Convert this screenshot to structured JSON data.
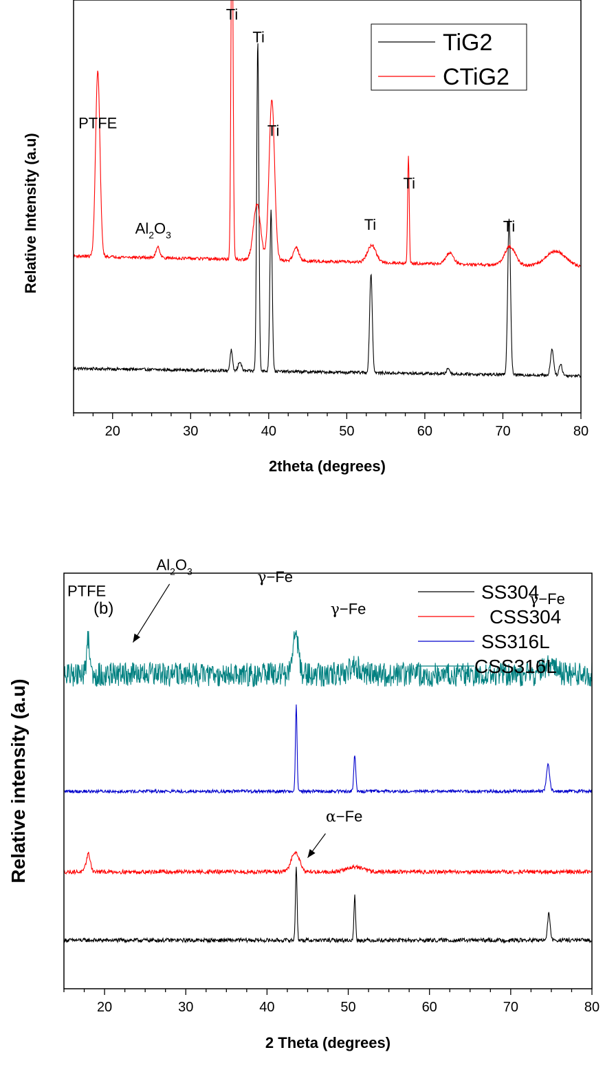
{
  "chart_data": [
    {
      "type": "line",
      "panel_label": "",
      "xlabel": "2theta (degrees)",
      "ylabel": "Relative Intensity (a.u)",
      "xlim": [
        15,
        80
      ],
      "xticks": [
        "20",
        "30",
        "40",
        "50",
        "60",
        "70",
        "80"
      ],
      "yticks_shown": false,
      "grid": false,
      "legend_position": "top-right",
      "series": [
        {
          "name": "TiG2",
          "color": "#000000",
          "baseline": 0.1,
          "slope": -0.0003,
          "noise": 0.004,
          "peaks": [
            {
              "x": 35.2,
              "h": 0.055,
              "w": 0.15
            },
            {
              "x": 36.3,
              "h": 0.025,
              "w": 0.2
            },
            {
              "x": 38.6,
              "h": 0.88,
              "w": 0.14
            },
            {
              "x": 40.3,
              "h": 0.43,
              "w": 0.15
            },
            {
              "x": 53.1,
              "h": 0.265,
              "w": 0.17
            },
            {
              "x": 63.0,
              "h": 0.015,
              "w": 0.2
            },
            {
              "x": 70.8,
              "h": 0.42,
              "w": 0.18
            },
            {
              "x": 76.3,
              "h": 0.07,
              "w": 0.2
            },
            {
              "x": 77.4,
              "h": 0.03,
              "w": 0.2
            }
          ]
        },
        {
          "name": "CTiG2",
          "color": "#ff0000",
          "baseline": 0.4,
          "slope": -0.00045,
          "noise": 0.004,
          "peaks": [
            {
              "x": 18.1,
              "h": 0.495,
              "w": 0.28
            },
            {
              "x": 25.8,
              "h": 0.03,
              "w": 0.25
            },
            {
              "x": 35.3,
              "h": 1.0,
              "w": 0.13
            },
            {
              "x": 38.5,
              "h": 0.15,
              "w": 0.45
            },
            {
              "x": 40.4,
              "h": 0.43,
              "w": 0.35
            },
            {
              "x": 43.5,
              "h": 0.035,
              "w": 0.35
            },
            {
              "x": 53.2,
              "h": 0.045,
              "w": 0.55
            },
            {
              "x": 57.9,
              "h": 0.29,
              "w": 0.1
            },
            {
              "x": 63.2,
              "h": 0.03,
              "w": 0.5
            },
            {
              "x": 70.9,
              "h": 0.05,
              "w": 0.7
            },
            {
              "x": 76.8,
              "h": 0.04,
              "w": 1.3
            }
          ]
        }
      ],
      "annotations": [
        {
          "text": "Ti",
          "x": 35.3,
          "label_y": 1.03
        },
        {
          "text": "Ti",
          "x": 38.7,
          "label_y": 0.97
        },
        {
          "text": "PTFE",
          "x": 18.1,
          "label_y": 0.74
        },
        {
          "text": "Ti",
          "x": 40.6,
          "label_y": 0.72
        },
        {
          "text": "Ti",
          "x": 58.0,
          "label_y": 0.58
        },
        {
          "text": "Ti",
          "x": 53.0,
          "label_y": 0.47
        },
        {
          "text": "Ti",
          "x": 70.8,
          "label_y": 0.465
        }
      ],
      "al2o3_annotation": {
        "base": "Al",
        "sub1": "2",
        "mid": "O",
        "sub2": "3",
        "x": 25.2,
        "label_y": 0.46
      }
    },
    {
      "type": "line",
      "panel_label": "(b)",
      "xlabel": "2 Theta (degrees)",
      "ylabel": "Relative intensity (a.u)",
      "xlim": [
        15,
        80
      ],
      "xticks": [
        "20",
        "30",
        "40",
        "50",
        "60",
        "70",
        "80"
      ],
      "yticks_shown": false,
      "grid": false,
      "legend_position": "top-right",
      "series": [
        {
          "name": "SS304",
          "color": "#000000",
          "baseline": 0.1,
          "slope": 0.0,
          "noise": 0.005,
          "peaks": [
            {
              "x": 43.6,
              "h": 0.185,
              "w": 0.1
            },
            {
              "x": 50.8,
              "h": 0.11,
              "w": 0.1
            },
            {
              "x": 74.7,
              "h": 0.07,
              "w": 0.15
            }
          ]
        },
        {
          "name": "CSS304",
          "color": "#ff0000",
          "baseline": 0.27,
          "slope": 0.0,
          "noise": 0.005,
          "peaks": [
            {
              "x": 18.0,
              "h": 0.045,
              "w": 0.25
            },
            {
              "x": 43.5,
              "h": 0.05,
              "w": 0.5
            },
            {
              "x": 50.8,
              "h": 0.012,
              "w": 1.0
            }
          ]
        },
        {
          "name": "SS316L",
          "color": "#0000cc",
          "baseline": 0.47,
          "slope": 0.0,
          "noise": 0.004,
          "peaks": [
            {
              "x": 43.6,
              "h": 0.215,
              "w": 0.1
            },
            {
              "x": 50.8,
              "h": 0.09,
              "w": 0.12
            },
            {
              "x": 74.6,
              "h": 0.065,
              "w": 0.2
            }
          ]
        },
        {
          "name": "CSS316L",
          "color": "#008080",
          "baseline": 0.76,
          "slope": 0.0,
          "noise": 0.03,
          "peaks": [
            {
              "x": 18.0,
              "h": 0.09,
              "w": 0.2
            },
            {
              "x": 43.5,
              "h": 0.1,
              "w": 0.35
            },
            {
              "x": 50.8,
              "h": 0.02,
              "w": 0.7
            },
            {
              "x": 74.7,
              "h": 0.025,
              "w": 0.8
            }
          ]
        }
      ],
      "annotations": [
        {
          "text": "PTFE",
          "x": 17.8,
          "label_y": 0.955
        },
        {
          "greek": "γ",
          "text": "−Fe",
          "x": 41.0,
          "label_y": 0.99
        },
        {
          "greek": "γ",
          "text": "−Fe",
          "x": 50.0,
          "label_y": 0.91
        },
        {
          "greek": "γ",
          "text": "−Fe",
          "x": 74.5,
          "label_y": 0.935
        },
        {
          "greek": "α",
          "text": "−Fe",
          "x": 49.5,
          "label_y": 0.395
        }
      ],
      "al2o3_annotation": {
        "base": "Al",
        "sub1": "2",
        "mid": "O",
        "sub2": "3",
        "x": 28.6,
        "label_y": 1.02
      },
      "arrows": [
        {
          "from_x": 28.0,
          "from_y": 0.985,
          "to_x": 23.5,
          "to_y": 0.84
        },
        {
          "from_x": 47.2,
          "from_y": 0.365,
          "to_x": 45.0,
          "to_y": 0.305
        }
      ]
    }
  ]
}
